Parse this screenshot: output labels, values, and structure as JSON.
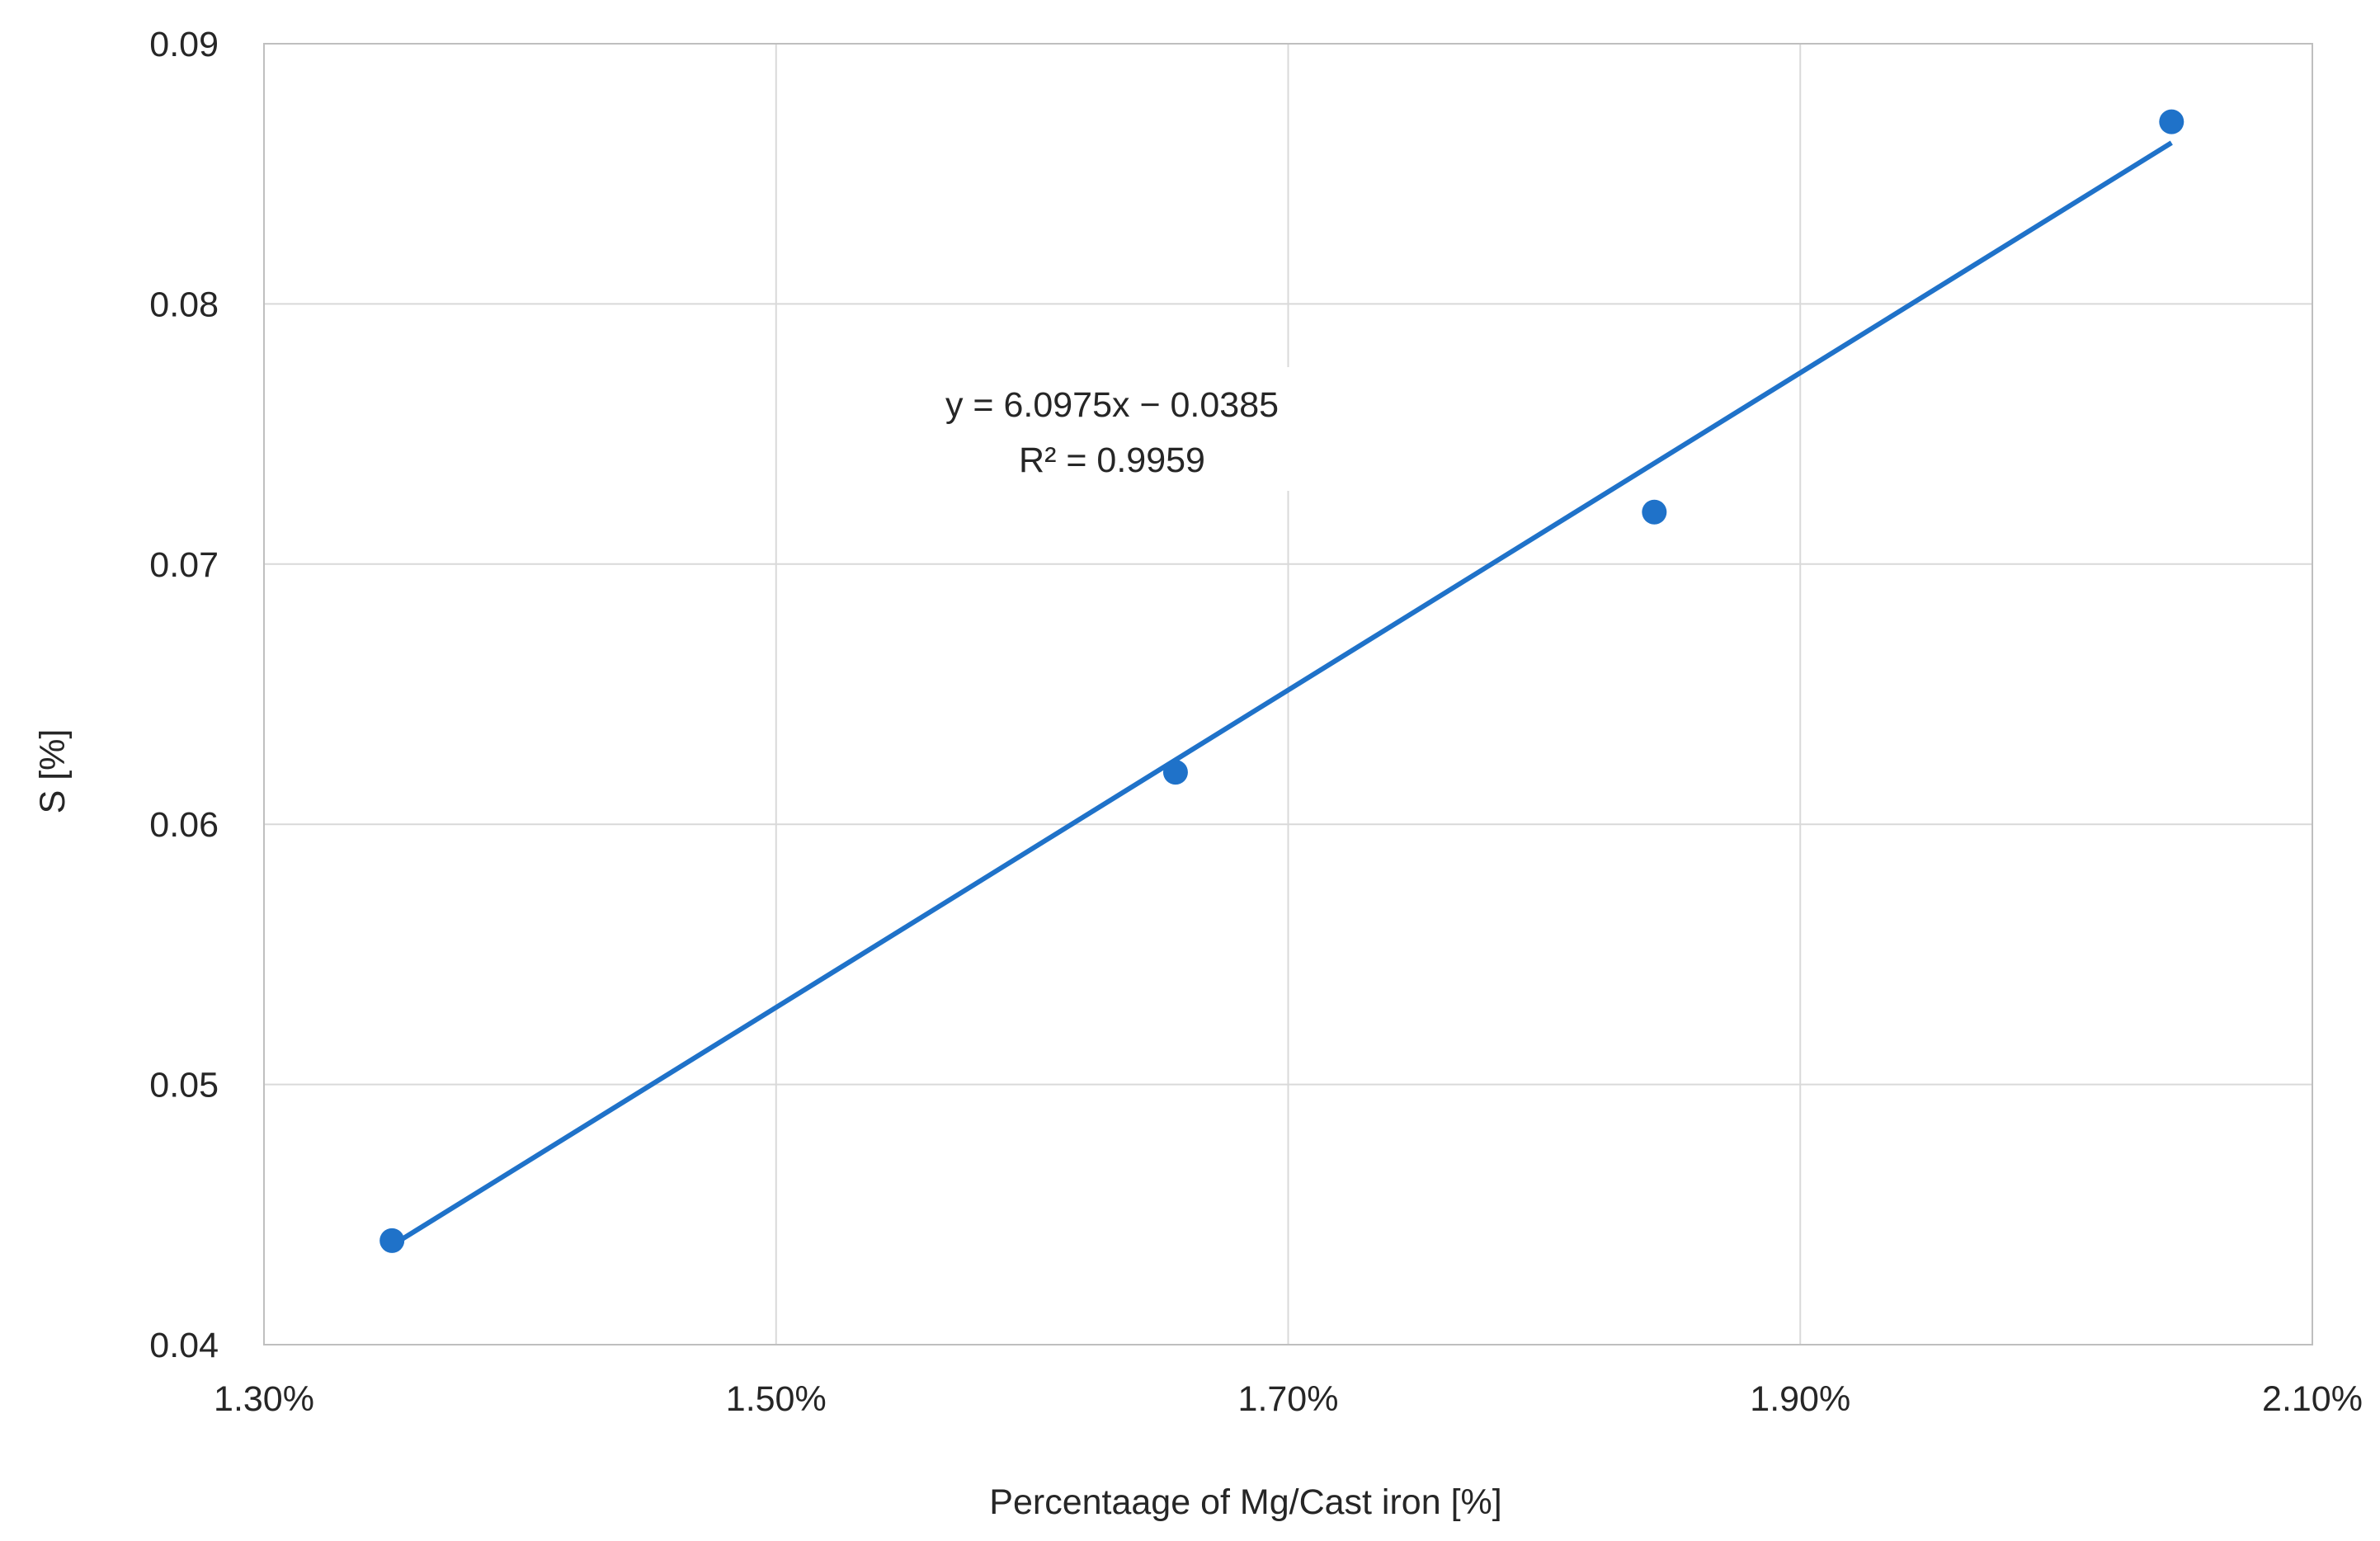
{
  "chart_data": {
    "type": "scatter",
    "title": "",
    "xlabel": "Percentaage of Mg/Cast iron  [%]",
    "ylabel": "S  [%]",
    "xlim": [
      1.3,
      2.1
    ],
    "ylim": [
      0.04,
      0.09
    ],
    "x_ticks": [
      1.3,
      1.5,
      1.7,
      1.9,
      2.1
    ],
    "x_tick_labels": [
      "1.30%",
      "1.50%",
      "1.70%",
      "1.90%",
      "2.10%"
    ],
    "y_ticks": [
      0.04,
      0.05,
      0.06,
      0.07,
      0.08,
      0.09
    ],
    "y_tick_labels": [
      "0.04",
      "0.05",
      "0.06",
      "0.07",
      "0.08",
      "0.09"
    ],
    "grid": true,
    "series": [
      {
        "x": [
          1.35,
          1.656,
          1.843,
          2.045
        ],
        "y": [
          0.044,
          0.062,
          0.072,
          0.087
        ],
        "color": "#1f72c9"
      }
    ],
    "trendline": {
      "type": "linear",
      "x_range": [
        1.35,
        2.045
      ],
      "equation": "y = 6.0975x − 0.0385",
      "r_squared": "R² = 0.9959",
      "color": "#1f72c9"
    },
    "colors": {
      "grid": "#d9d9d9",
      "axis": "#bfbfbf",
      "text": "#262626"
    }
  }
}
